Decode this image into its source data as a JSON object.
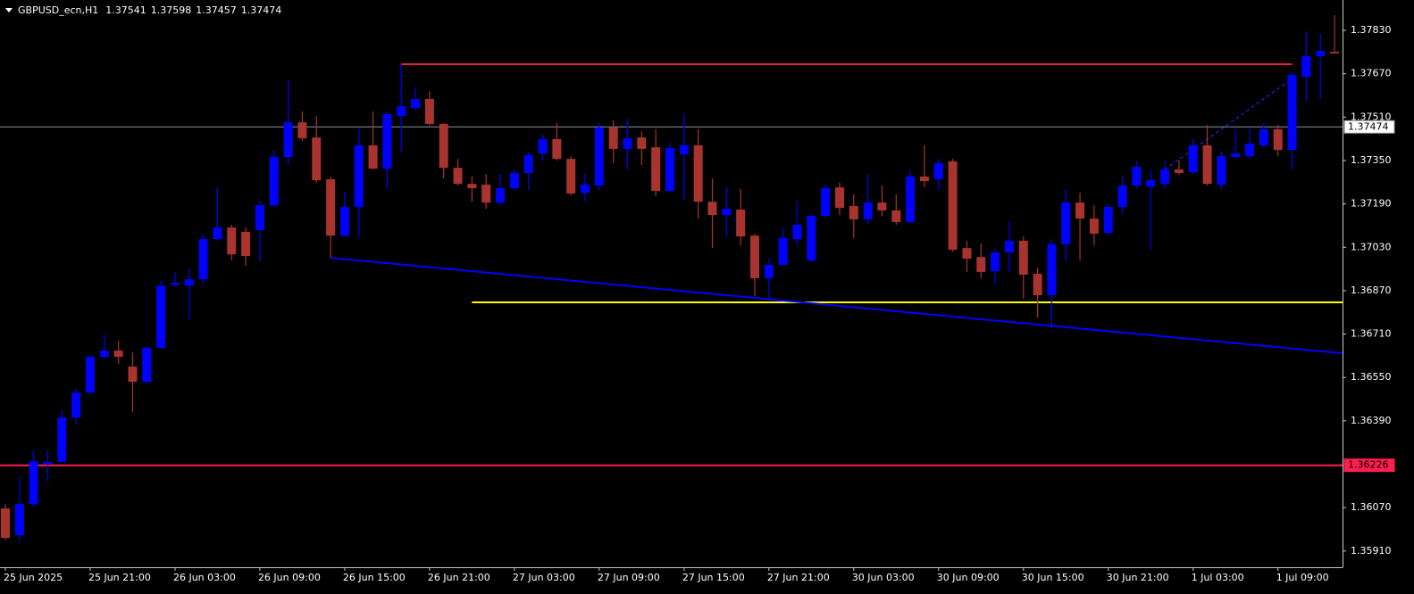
{
  "chart_data": {
    "type": "candlestick",
    "header": {
      "symbol": "GBPUSD_ecn,H1",
      "ohlc": [
        1.37541,
        1.37598,
        1.37457,
        1.37474
      ]
    },
    "categories": [
      "25 Jun 2025",
      null,
      null,
      null,
      null,
      null,
      "25 Jun 21:00",
      null,
      null,
      null,
      null,
      null,
      "26 Jun 03:00",
      null,
      null,
      null,
      null,
      null,
      "26 Jun 09:00",
      null,
      null,
      null,
      null,
      null,
      "26 Jun 15:00",
      null,
      null,
      null,
      null,
      null,
      "26 Jun 21:00",
      null,
      null,
      null,
      null,
      null,
      "27 Jun 03:00",
      null,
      null,
      null,
      null,
      null,
      "27 Jun 09:00",
      null,
      null,
      null,
      null,
      null,
      "27 Jun 15:00",
      null,
      null,
      null,
      null,
      null,
      "27 Jun 21:00",
      null,
      null,
      null,
      null,
      null,
      "30 Jun 03:00",
      null,
      null,
      null,
      null,
      null,
      "30 Jun 09:00",
      null,
      null,
      null,
      null,
      null,
      "30 Jun 15:00",
      null,
      null,
      null,
      null,
      null,
      "30 Jun 21:00",
      null,
      null,
      null,
      null,
      null,
      "1 Jul 03:00",
      null,
      null,
      null,
      null,
      null,
      "1 Jul 09:00",
      null,
      null,
      null,
      null
    ],
    "open": [
      1.36067,
      1.35968,
      1.36083,
      1.36231,
      1.36238,
      1.36402,
      1.36494,
      1.36626,
      1.36649,
      1.3659,
      1.36534,
      1.36659,
      1.36892,
      1.36889,
      1.36912,
      1.3706,
      1.37103,
      1.37087,
      1.37093,
      1.37185,
      1.37363,
      1.37491,
      1.37435,
      1.37281,
      1.37073,
      1.37179,
      1.37406,
      1.3732,
      1.37514,
      1.37544,
      1.37577,
      1.37485,
      1.37323,
      1.37264,
      1.37261,
      1.37195,
      1.37248,
      1.37304,
      1.37376,
      1.37429,
      1.37356,
      1.37231,
      1.37258,
      1.37472,
      1.37393,
      1.37435,
      1.37399,
      1.37238,
      1.37373,
      1.37406,
      1.37198,
      1.37149,
      1.37169,
      1.37073,
      1.36916,
      1.36965,
      1.3706,
      1.36981,
      1.37146,
      1.37251,
      1.37182,
      1.37133,
      1.37195,
      1.37166,
      1.37123,
      1.37291,
      1.37281,
      1.37347,
      1.37027,
      1.36994,
      1.36942,
      1.37011,
      1.37054,
      1.36932,
      1.36853,
      1.37041,
      1.37195,
      1.37136,
      1.37083,
      1.37179,
      1.37258,
      1.37254,
      1.37264,
      1.37317,
      1.37307,
      1.37406,
      1.37261,
      1.37363,
      1.37366,
      1.37406,
      1.37465,
      1.37389,
      1.37659,
      1.37735,
      1.37751
    ],
    "high": [
      1.36083,
      1.36182,
      1.36281,
      1.36281,
      1.36429,
      1.36511,
      1.36633,
      1.36708,
      1.36685,
      1.36642,
      1.36665,
      1.36906,
      1.36939,
      1.36955,
      1.3708,
      1.37251,
      1.37113,
      1.37103,
      1.37202,
      1.37389,
      1.37646,
      1.37531,
      1.37514,
      1.37291,
      1.37235,
      1.37465,
      1.37531,
      1.37531,
      1.37705,
      1.3762,
      1.37606,
      1.37488,
      1.37356,
      1.37291,
      1.373,
      1.373,
      1.37317,
      1.37383,
      1.37448,
      1.37488,
      1.37366,
      1.373,
      1.37488,
      1.37498,
      1.37504,
      1.37458,
      1.37465,
      1.37416,
      1.37521,
      1.37465,
      1.37284,
      1.37251,
      1.37245,
      1.3708,
      1.36988,
      1.37103,
      1.37202,
      1.37152,
      1.37261,
      1.37268,
      1.37225,
      1.373,
      1.37258,
      1.37225,
      1.37317,
      1.37406,
      1.37356,
      1.37356,
      1.37054,
      1.37044,
      1.37021,
      1.37126,
      1.3707,
      1.36955,
      1.3706,
      1.37245,
      1.37231,
      1.37185,
      1.37192,
      1.37291,
      1.3735,
      1.37317,
      1.3735,
      1.3735,
      1.37432,
      1.37481,
      1.37383,
      1.37465,
      1.37465,
      1.37488,
      1.37481,
      1.37679,
      1.37827,
      1.37817,
      1.37886
    ],
    "low": [
      1.35952,
      1.35942,
      1.36073,
      1.36165,
      1.36238,
      1.36379,
      1.36488,
      1.36619,
      1.366,
      1.36422,
      1.36527,
      1.36659,
      1.36883,
      1.36764,
      1.36896,
      1.37054,
      1.36981,
      1.36962,
      1.36978,
      1.37179,
      1.37333,
      1.37422,
      1.37268,
      1.36991,
      1.37067,
      1.37067,
      1.37317,
      1.37245,
      1.37383,
      1.37534,
      1.37478,
      1.37284,
      1.37258,
      1.37198,
      1.37172,
      1.37185,
      1.37241,
      1.37241,
      1.3735,
      1.3735,
      1.37221,
      1.37202,
      1.37241,
      1.3734,
      1.37317,
      1.37333,
      1.37218,
      1.37235,
      1.37205,
      1.37136,
      1.37027,
      1.3707,
      1.37037,
      1.3685,
      1.3684,
      1.36962,
      1.37034,
      1.36978,
      1.37139,
      1.37149,
      1.37064,
      1.37116,
      1.37146,
      1.37113,
      1.37119,
      1.37251,
      1.37241,
      1.37014,
      1.36939,
      1.36916,
      1.36896,
      1.36939,
      1.3684,
      1.36771,
      1.36731,
      1.36981,
      1.36981,
      1.37037,
      1.37077,
      1.37152,
      1.37245,
      1.37021,
      1.37245,
      1.37297,
      1.373,
      1.37258,
      1.37245,
      1.3736,
      1.37356,
      1.37396,
      1.37366,
      1.37317,
      1.3757,
      1.3758,
      1.37745
    ],
    "close": [
      1.35958,
      1.36083,
      1.36241,
      1.36238,
      1.36402,
      1.36494,
      1.36626,
      1.36649,
      1.36626,
      1.36534,
      1.36659,
      1.36889,
      1.36899,
      1.36912,
      1.3706,
      1.37103,
      1.37004,
      1.36998,
      1.37185,
      1.37363,
      1.37491,
      1.37432,
      1.37277,
      1.37073,
      1.37179,
      1.37406,
      1.3732,
      1.37521,
      1.3755,
      1.37577,
      1.37485,
      1.37323,
      1.37264,
      1.37248,
      1.37195,
      1.37248,
      1.37304,
      1.3737,
      1.37429,
      1.37356,
      1.37228,
      1.37261,
      1.37472,
      1.37393,
      1.37432,
      1.37393,
      1.37238,
      1.37396,
      1.37406,
      1.37198,
      1.37149,
      1.37172,
      1.3707,
      1.36916,
      1.36965,
      1.37064,
      1.37113,
      1.37146,
      1.37248,
      1.37175,
      1.37133,
      1.37195,
      1.37166,
      1.37123,
      1.37291,
      1.37274,
      1.3734,
      1.37021,
      1.36988,
      1.36939,
      1.37011,
      1.37054,
      1.36929,
      1.36853,
      1.37041,
      1.37195,
      1.37136,
      1.3708,
      1.37179,
      1.37258,
      1.37327,
      1.37277,
      1.37317,
      1.37304,
      1.37406,
      1.37264,
      1.37366,
      1.37376,
      1.37412,
      1.37465,
      1.37389,
      1.37666,
      1.37735,
      1.37754,
      1.37745
    ],
    "up_color": "#0000ff",
    "down_color": "#a8332f",
    "ylim": [
      1.3585,
      1.37942
    ],
    "yticks": [
      {
        "value": 1.3783,
        "label": "1.37830"
      },
      {
        "value": 1.3767,
        "label": "1.37670"
      },
      {
        "value": 1.3751,
        "label": "1.37510"
      },
      {
        "value": 1.3735,
        "label": "1.37350"
      },
      {
        "value": 1.3719,
        "label": "1.37190"
      },
      {
        "value": 1.3703,
        "label": "1.37030"
      },
      {
        "value": 1.3687,
        "label": "1.36870"
      },
      {
        "value": 1.3671,
        "label": "1.36710"
      },
      {
        "value": 1.3655,
        "label": "1.36550"
      },
      {
        "value": 1.3639,
        "label": "1.36390"
      },
      {
        "value": 1.3607,
        "label": "1.36070"
      },
      {
        "value": 1.3591,
        "label": "1.35910"
      }
    ],
    "grid": false,
    "levels": [
      {
        "value": 1.37474,
        "color": "#8a96a2"
      },
      {
        "value": 1.36226,
        "color": "#ff1f4f"
      }
    ],
    "segments": [
      {
        "x": [
          28,
          91
        ],
        "y": [
          1.37705,
          1.37705
        ],
        "color": "#e8203c"
      },
      {
        "x": [
          33,
          95
        ],
        "y": [
          1.36827,
          1.36827
        ],
        "color": "#ffff00"
      },
      {
        "x": [
          23,
          95
        ],
        "y": [
          1.36991,
          1.36637
        ],
        "color": "#0000ff"
      },
      {
        "x": [
          82,
          91
        ],
        "y": [
          1.37317,
          1.37652
        ],
        "color": "#2a2aff",
        "dashed": true
      }
    ]
  }
}
